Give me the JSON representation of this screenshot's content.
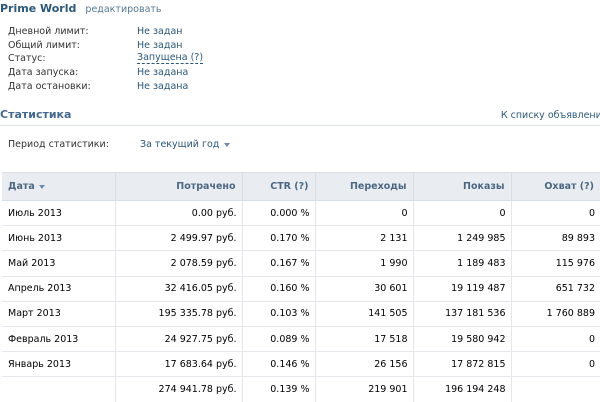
{
  "header": {
    "title": "Prime World",
    "edit_label": "редактировать"
  },
  "info": [
    {
      "label": "Дневной лимит:",
      "value": "Не задан",
      "link": false
    },
    {
      "label": "Общий лимит:",
      "value": "Не задан",
      "link": false
    },
    {
      "label": "Статус:",
      "value": "Запущена (?)",
      "link": true
    },
    {
      "label": "Дата запуска:",
      "value": "Не задана",
      "link": false
    },
    {
      "label": "Дата остановки:",
      "value": "Не задана",
      "link": false
    }
  ],
  "section": {
    "title": "Статистика",
    "back_link": "К списку объявлений"
  },
  "period": {
    "label": "Период статистики:",
    "value": "За текущий год"
  },
  "table": {
    "columns": [
      "Дата",
      "Потрачено",
      "CTR (?)",
      "Переходы",
      "Показы",
      "Охват (?)"
    ],
    "rows": [
      [
        "Июль 2013",
        "0.00 руб.",
        "0.000 %",
        "0",
        "0",
        "0"
      ],
      [
        "Июнь 2013",
        "2 499.97 руб.",
        "0.170 %",
        "2 131",
        "1 249 985",
        "89 893"
      ],
      [
        "Май 2013",
        "2 078.59 руб.",
        "0.167 %",
        "1 990",
        "1 189 483",
        "115 976"
      ],
      [
        "Апрель 2013",
        "32 416.05 руб.",
        "0.160 %",
        "30 601",
        "19 119 487",
        "651 732"
      ],
      [
        "Март 2013",
        "195 335.78 руб.",
        "0.103 %",
        "141 505",
        "137 181 536",
        "1 760 889"
      ],
      [
        "Февраль 2013",
        "24 927.75 руб.",
        "0.089 %",
        "17 518",
        "19 580 942",
        "0"
      ],
      [
        "Январь 2013",
        "17 683.64 руб.",
        "0.146 %",
        "26 156",
        "17 872 815",
        "0"
      ]
    ],
    "total": [
      "",
      "274 941.78 руб.",
      "0.139 %",
      "219 901",
      "196 194 248",
      ""
    ]
  },
  "colors": {
    "link": "#2b587a",
    "section_title": "#45688e",
    "table_header_bg": "#e9edf1"
  },
  "icons": {
    "sort": "caret-down-icon",
    "dropdown": "caret-down-icon"
  }
}
